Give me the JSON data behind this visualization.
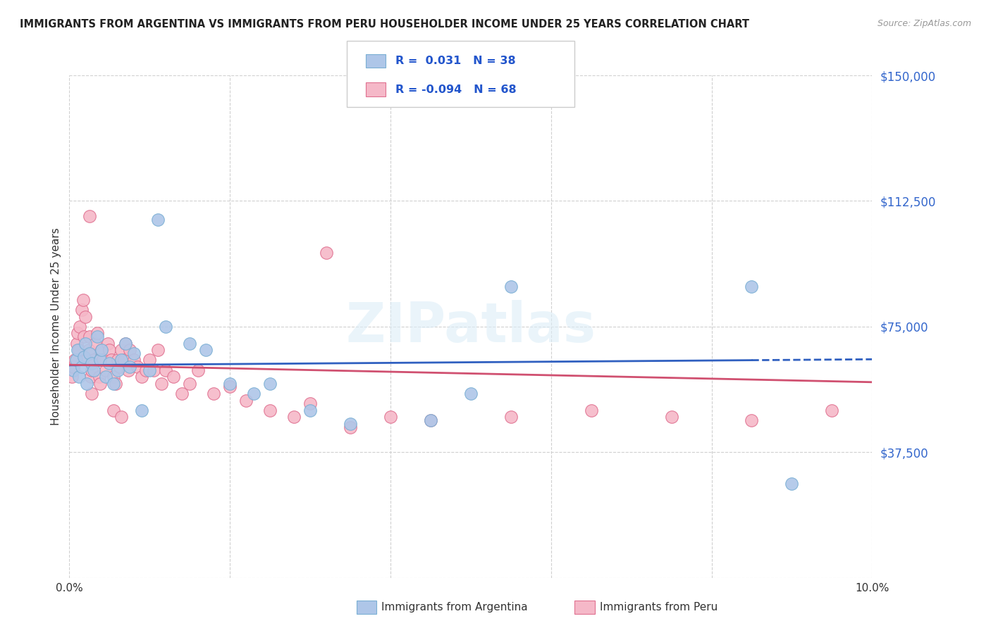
{
  "title": "IMMIGRANTS FROM ARGENTINA VS IMMIGRANTS FROM PERU HOUSEHOLDER INCOME UNDER 25 YEARS CORRELATION CHART",
  "source": "Source: ZipAtlas.com",
  "ylabel": "Householder Income Under 25 years",
  "xmin": 0.0,
  "xmax": 10.0,
  "ymin": 0,
  "ymax": 150000,
  "yticks": [
    0,
    37500,
    75000,
    112500,
    150000
  ],
  "ytick_labels": [
    "",
    "$37,500",
    "$75,000",
    "$112,500",
    "$150,000"
  ],
  "xticks": [
    0.0,
    2.0,
    4.0,
    6.0,
    8.0,
    10.0
  ],
  "xtick_labels": [
    "0.0%",
    "",
    "",
    "",
    "",
    "10.0%"
  ],
  "argentina_color": "#aec6e8",
  "peru_color": "#f5b8c8",
  "argentina_edge": "#7aafd4",
  "peru_edge": "#e07090",
  "argentina_line_color": "#3060c0",
  "peru_line_color": "#d05070",
  "r_argentina": 0.031,
  "n_argentina": 38,
  "r_peru": -0.094,
  "n_peru": 68,
  "watermark": "ZIPatlas",
  "legend_argentina": "Immigrants from Argentina",
  "legend_peru": "Immigrants from Peru",
  "argentina_x": [
    0.05,
    0.08,
    0.1,
    0.12,
    0.15,
    0.18,
    0.2,
    0.22,
    0.25,
    0.28,
    0.3,
    0.35,
    0.38,
    0.4,
    0.45,
    0.5,
    0.55,
    0.6,
    0.65,
    0.7,
    0.75,
    0.8,
    0.9,
    1.0,
    1.1,
    1.2,
    1.5,
    1.7,
    2.0,
    2.3,
    2.5,
    3.0,
    3.5,
    4.5,
    5.0,
    5.5,
    8.5,
    9.0
  ],
  "argentina_y": [
    62000,
    65000,
    68000,
    60000,
    63000,
    66000,
    70000,
    58000,
    67000,
    64000,
    62000,
    72000,
    65000,
    68000,
    60000,
    64000,
    58000,
    62000,
    65000,
    70000,
    63000,
    67000,
    50000,
    62000,
    107000,
    75000,
    70000,
    68000,
    58000,
    55000,
    58000,
    50000,
    46000,
    47000,
    55000,
    87000,
    87000,
    28000
  ],
  "peru_x": [
    0.03,
    0.05,
    0.07,
    0.09,
    0.1,
    0.12,
    0.13,
    0.15,
    0.17,
    0.18,
    0.2,
    0.22,
    0.24,
    0.25,
    0.27,
    0.28,
    0.3,
    0.32,
    0.35,
    0.37,
    0.4,
    0.42,
    0.45,
    0.48,
    0.5,
    0.52,
    0.55,
    0.58,
    0.6,
    0.63,
    0.65,
    0.68,
    0.7,
    0.73,
    0.75,
    0.8,
    0.85,
    0.9,
    0.95,
    1.0,
    1.05,
    1.1,
    1.15,
    1.2,
    1.3,
    1.4,
    1.5,
    1.6,
    1.8,
    2.0,
    2.2,
    2.5,
    2.8,
    3.0,
    3.5,
    4.0,
    4.5,
    5.5,
    6.5,
    7.5,
    8.5,
    9.5,
    0.25,
    3.2,
    0.55,
    0.65,
    0.28,
    0.38
  ],
  "peru_y": [
    60000,
    63000,
    65000,
    70000,
    73000,
    68000,
    75000,
    80000,
    83000,
    72000,
    78000,
    65000,
    68000,
    72000,
    60000,
    62000,
    65000,
    70000,
    73000,
    60000,
    68000,
    65000,
    62000,
    70000,
    68000,
    65000,
    60000,
    58000,
    65000,
    63000,
    68000,
    65000,
    70000,
    62000,
    68000,
    65000,
    63000,
    60000,
    62000,
    65000,
    62000,
    68000,
    58000,
    62000,
    60000,
    55000,
    58000,
    62000,
    55000,
    57000,
    53000,
    50000,
    48000,
    52000,
    45000,
    48000,
    47000,
    48000,
    50000,
    48000,
    47000,
    50000,
    108000,
    97000,
    50000,
    48000,
    55000,
    58000
  ]
}
